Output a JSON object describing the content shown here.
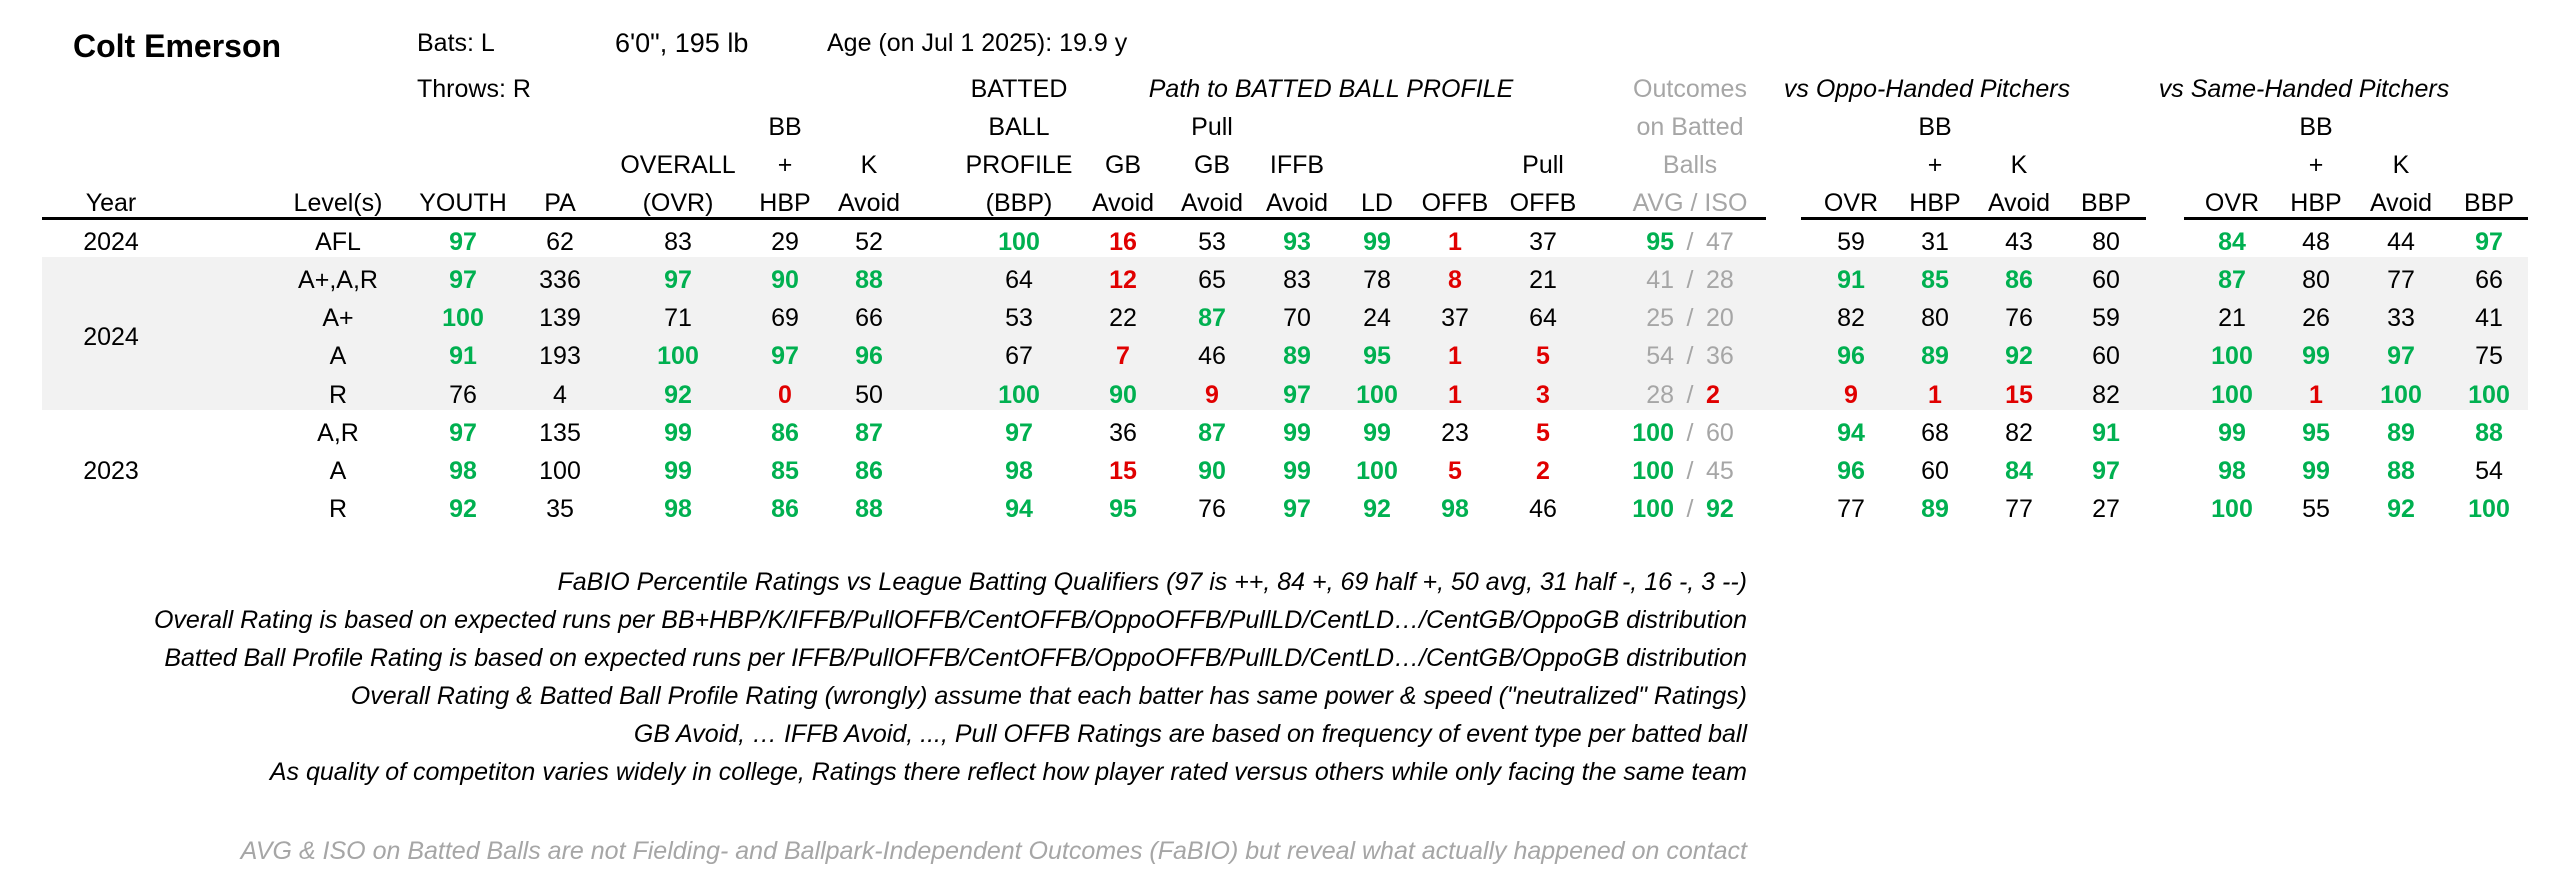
{
  "player": {
    "name": "Colt Emerson",
    "bats": "Bats: L",
    "throws": "Throws: R",
    "size": "6'0\", 195 lb",
    "age": "Age (on Jul 1 2025): 19.9 y"
  },
  "group_headers": {
    "path": "Path to BATTED BALL PROFILE",
    "vs_oppo": "vs Oppo-Handed Pitchers",
    "vs_same": "vs Same-Handed Pitchers"
  },
  "headers": {
    "year": "Year",
    "level": "Level(s)",
    "youth": "YOUTH",
    "pa": "PA",
    "ovr_l1": "OVERALL",
    "ovr_l2": "(OVR)",
    "bbhbp_l1": "BB",
    "bbhbp_l2": "+",
    "bbhbp_l3": "HBP",
    "k_l1": "K",
    "k_l2": "Avoid",
    "bbp_l1": "BATTED",
    "bbp_l2": "BALL",
    "bbp_l3": "PROFILE",
    "bbp_l4": "(BBP)",
    "gb_l1": "GB",
    "gb_l2": "Avoid",
    "pgb_l1": "Pull",
    "pgb_l2": "GB",
    "pgb_l3": "Avoid",
    "iffb_l1": "IFFB",
    "iffb_l2": "Avoid",
    "ld": "LD",
    "offb": "OFFB",
    "poffb_l1": "Pull",
    "poffb_l2": "OFFB",
    "out_l1": "Outcomes",
    "out_l2": "on Batted",
    "out_l3": "Balls",
    "out_l4": "AVG  /  ISO",
    "s_ovr": "OVR",
    "s_bb_l1": "BB",
    "s_bb_l2": "+",
    "s_bb_l3": "HBP",
    "s_k_l1": "K",
    "s_k_l2": "Avoid",
    "s_bbp": "BBP"
  },
  "years": [
    "2024",
    "2024",
    "2023"
  ],
  "rows": [
    {
      "level": "AFL",
      "youth": "97",
      "pa": "62",
      "ovr": "83",
      "bbhbp": "29",
      "kavoid": "52",
      "bbp": "100",
      "gbavoid": "16",
      "pullgb": "53",
      "iffb": "93",
      "ld": "99",
      "offb": "1",
      "pulloffb": "37",
      "avg": "95",
      "iso": "47",
      "o_ovr": "59",
      "o_bb": "31",
      "o_k": "43",
      "o_bbp": "80",
      "s_ovr": "84",
      "s_bb": "48",
      "s_k": "44",
      "s_bbp": "97"
    },
    {
      "level": "A+,A,R",
      "youth": "97",
      "pa": "336",
      "ovr": "97",
      "bbhbp": "90",
      "kavoid": "88",
      "bbp": "64",
      "gbavoid": "12",
      "pullgb": "65",
      "iffb": "83",
      "ld": "78",
      "offb": "8",
      "pulloffb": "21",
      "avg": "41",
      "iso": "28",
      "o_ovr": "91",
      "o_bb": "85",
      "o_k": "86",
      "o_bbp": "60",
      "s_ovr": "87",
      "s_bb": "80",
      "s_k": "77",
      "s_bbp": "66"
    },
    {
      "level": "A+",
      "youth": "100",
      "pa": "139",
      "ovr": "71",
      "bbhbp": "69",
      "kavoid": "66",
      "bbp": "53",
      "gbavoid": "22",
      "pullgb": "87",
      "iffb": "70",
      "ld": "24",
      "offb": "37",
      "pulloffb": "64",
      "avg": "25",
      "iso": "20",
      "o_ovr": "82",
      "o_bb": "80",
      "o_k": "76",
      "o_bbp": "59",
      "s_ovr": "21",
      "s_bb": "26",
      "s_k": "33",
      "s_bbp": "41"
    },
    {
      "level": "A",
      "youth": "91",
      "pa": "193",
      "ovr": "100",
      "bbhbp": "97",
      "kavoid": "96",
      "bbp": "67",
      "gbavoid": "7",
      "pullgb": "46",
      "iffb": "89",
      "ld": "95",
      "offb": "1",
      "pulloffb": "5",
      "avg": "54",
      "iso": "36",
      "o_ovr": "96",
      "o_bb": "89",
      "o_k": "92",
      "o_bbp": "60",
      "s_ovr": "100",
      "s_bb": "99",
      "s_k": "97",
      "s_bbp": "75"
    },
    {
      "level": "R",
      "youth": "76",
      "pa": "4",
      "ovr": "92",
      "bbhbp": "0",
      "kavoid": "50",
      "bbp": "100",
      "gbavoid": "90",
      "pullgb": "9",
      "iffb": "97",
      "ld": "100",
      "offb": "1",
      "pulloffb": "3",
      "avg": "28",
      "iso": "2",
      "o_ovr": "9",
      "o_bb": "1",
      "o_k": "15",
      "o_bbp": "82",
      "s_ovr": "100",
      "s_bb": "1",
      "s_k": "100",
      "s_bbp": "100"
    },
    {
      "level": "A,R",
      "youth": "97",
      "pa": "135",
      "ovr": "99",
      "bbhbp": "86",
      "kavoid": "87",
      "bbp": "97",
      "gbavoid": "36",
      "pullgb": "87",
      "iffb": "99",
      "ld": "99",
      "offb": "23",
      "pulloffb": "5",
      "avg": "100",
      "iso": "60",
      "o_ovr": "94",
      "o_bb": "68",
      "o_k": "82",
      "o_bbp": "91",
      "s_ovr": "99",
      "s_bb": "95",
      "s_k": "89",
      "s_bbp": "88"
    },
    {
      "level": "A",
      "youth": "98",
      "pa": "100",
      "ovr": "99",
      "bbhbp": "85",
      "kavoid": "86",
      "bbp": "98",
      "gbavoid": "15",
      "pullgb": "90",
      "iffb": "99",
      "ld": "100",
      "offb": "5",
      "pulloffb": "2",
      "avg": "100",
      "iso": "45",
      "o_ovr": "96",
      "o_bb": "60",
      "o_k": "84",
      "o_bbp": "97",
      "s_ovr": "98",
      "s_bb": "99",
      "s_k": "88",
      "s_bbp": "54"
    },
    {
      "level": "R",
      "youth": "92",
      "pa": "35",
      "ovr": "98",
      "bbhbp": "86",
      "kavoid": "88",
      "bbp": "94",
      "gbavoid": "95",
      "pullgb": "76",
      "iffb": "97",
      "ld": "92",
      "offb": "98",
      "pulloffb": "46",
      "avg": "100",
      "iso": "92",
      "o_ovr": "77",
      "o_bb": "89",
      "o_k": "77",
      "o_bbp": "27",
      "s_ovr": "100",
      "s_bb": "55",
      "s_k": "92",
      "s_bbp": "100"
    }
  ],
  "notes": [
    "FaBIO Percentile Ratings vs League Batting Qualifiers (97 is ++, 84 +, 69 half +, 50 avg, 31 half -, 16 -, 3 --)",
    "Overall Rating is based on expected runs per BB+HBP/K/IFFB/PullOFFB/CentOFFB/OppoOFFB/PullLD/CentLD…/CentGB/OppoGB distribution",
    "Batted Ball Profile Rating is based on expected runs per IFFB/PullOFFB/CentOFFB/OppoOFFB/PullLD/CentLD…/CentGB/OppoGB distribution",
    "Overall Rating & Batted Ball Profile Rating (wrongly) assume that each batter has same power & speed (\"neutralized\" Ratings)",
    "GB Avoid, … IFFB Avoid, ..., Pull OFFB Ratings are based on frequency of event type per batted ball",
    "As quality of competiton varies widely in college, Ratings there reflect how player rated versus others while only facing the same team"
  ],
  "footnote": "AVG & ISO on Batted Balls are not Fielding- and Ballpark-Independent Outcomes (FaBIO) but reveal what actually happened on contact",
  "colors": {
    "good": "#00b050",
    "bad": "#e00000",
    "muted": "#a6a6a6",
    "shade": "#f2f2f2"
  }
}
